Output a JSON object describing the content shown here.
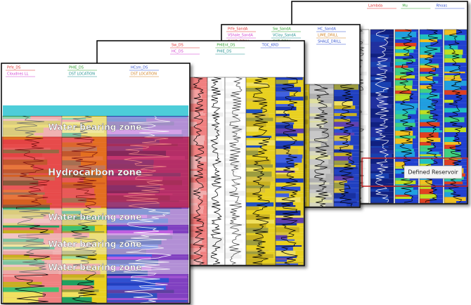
{
  "panels": [
    {
      "headers": [
        "Lambda",
        "Mu",
        "Rhoas"
      ]
    },
    {
      "headers": [
        "Prfe_SandA",
        "Sw_SandA",
        "HC_SandA",
        "VShale_SandA",
        "VClay_SandA",
        "LIME_DRILL",
        "SAND_DRILL",
        "SILT_DRILL",
        "SHALE_DRILL",
        "VClay_DKCal"
      ]
    },
    {
      "headers": [
        "Sw_DS",
        "PHIEnt_DS",
        "TOC_KRD",
        "HC_DS",
        "PHIE_DS"
      ]
    },
    {
      "headers": [
        "Prfe_DS",
        "PHIE_DS",
        "HCsm_DS",
        "Cloudnes LL",
        "DST LOCATION",
        "DST LOCATION"
      ]
    }
  ],
  "zones": [
    {
      "label": "Water bearing zone"
    },
    {
      "label": "Hydrocarbon zone"
    },
    {
      "label": "Water bearing zone"
    },
    {
      "label": "Water bearing zone"
    },
    {
      "label": "Water bearing zone"
    }
  ],
  "reservoir_label": "Defined Reservoir"
}
